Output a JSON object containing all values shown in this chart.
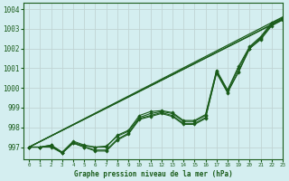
{
  "title": "Graphe pression niveau de la mer (hPa)",
  "bg_color": "#d4eef0",
  "grid_color": "#c0d4d4",
  "line_color": "#1a5c1a",
  "xlim": [
    -0.5,
    23
  ],
  "ylim": [
    996.4,
    1004.3
  ],
  "yticks": [
    997,
    998,
    999,
    1000,
    1001,
    1002,
    1003,
    1004
  ],
  "xticks": [
    0,
    1,
    2,
    3,
    4,
    5,
    6,
    7,
    8,
    9,
    10,
    11,
    12,
    13,
    14,
    15,
    16,
    17,
    18,
    19,
    20,
    21,
    22,
    23
  ],
  "series_smooth": [
    [
      [
        0,
        23
      ],
      [
        997.0,
        1003.5
      ]
    ],
    [
      [
        0,
        23
      ],
      [
        997.0,
        1003.6
      ]
    ],
    [
      [
        0,
        22
      ],
      [
        997.0,
        1003.2
      ]
    ]
  ],
  "series_all": [
    [
      997.0,
      997.0,
      997.1,
      996.7,
      997.25,
      997.05,
      997.0,
      997.0,
      997.6,
      997.85,
      998.6,
      998.8,
      998.85,
      998.75,
      998.35,
      998.35,
      998.65,
      1000.9,
      999.9,
      1001.1,
      1002.1,
      1002.6,
      1003.3,
      1003.55
    ],
    [
      997.0,
      997.0,
      997.1,
      996.75,
      997.3,
      997.1,
      997.0,
      997.05,
      997.55,
      997.8,
      998.5,
      998.7,
      998.8,
      998.7,
      998.3,
      998.3,
      998.6,
      1000.85,
      999.85,
      1001.0,
      1002.05,
      1002.55,
      1003.25,
      1003.5
    ],
    [
      997.0,
      997.0,
      997.05,
      996.7,
      997.2,
      997.0,
      996.85,
      996.85,
      997.4,
      997.7,
      998.45,
      998.6,
      998.75,
      998.6,
      998.2,
      998.2,
      998.5,
      1000.75,
      999.75,
      1000.85,
      1002.0,
      1002.5,
      1003.2,
      1003.45
    ],
    [
      997.0,
      997.0,
      997.0,
      996.7,
      997.2,
      997.0,
      996.8,
      996.8,
      997.35,
      997.65,
      998.4,
      998.55,
      998.7,
      998.55,
      998.15,
      998.15,
      998.45,
      1000.8,
      999.8,
      1000.8,
      1002.0,
      1002.45,
      1003.15,
      1003.45
    ]
  ]
}
